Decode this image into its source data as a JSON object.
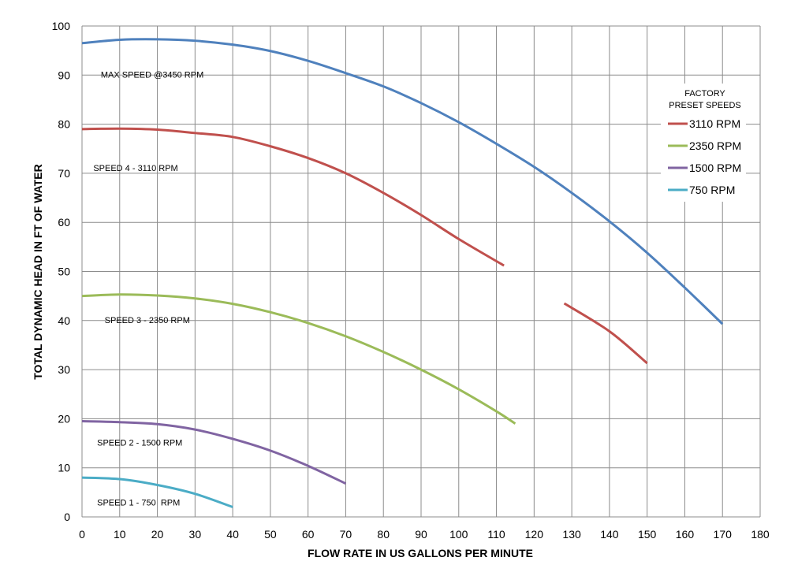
{
  "chart_data": {
    "type": "line",
    "title": "",
    "xlabel": "FLOW RATE IN US GALLONS PER MINUTE",
    "ylabel": "TOTAL DYNAMIC HEAD IN FT OF WATER",
    "xlim": [
      0,
      180
    ],
    "ylim": [
      0,
      100
    ],
    "xticks": [
      "0",
      "10",
      "20",
      "30",
      "40",
      "50",
      "60",
      "70",
      "80",
      "90",
      "100",
      "110",
      "120",
      "130",
      "140",
      "150",
      "160",
      "170",
      "180"
    ],
    "yticks": [
      "0",
      "10",
      "20",
      "30",
      "40",
      "50",
      "60",
      "70",
      "80",
      "90",
      "100"
    ],
    "grid": true,
    "legend": {
      "title_lines": [
        "FACTORY",
        "PRESET SPEEDS"
      ],
      "placement": "top-right",
      "entries": [
        {
          "label": "3110 RPM",
          "color": "#C0504D"
        },
        {
          "label": "2350 RPM",
          "color": "#9BBB59"
        },
        {
          "label": "1500 RPM",
          "color": "#8064A2"
        },
        {
          "label": "750 RPM",
          "color": "#4BACC6"
        }
      ]
    },
    "series": [
      {
        "name": "MAX SPEED @3450 RPM",
        "color": "#4F81BD",
        "segments": [
          {
            "x": [
              0,
              10,
              20,
              30,
              40,
              50,
              60,
              70,
              80,
              90,
              100,
              110,
              120,
              130,
              140,
              150,
              160,
              170
            ],
            "y": [
              96.5,
              97.2,
              97.3,
              97.0,
              96.2,
              94.9,
              92.9,
              90.4,
              87.7,
              84.3,
              80.4,
              76.0,
              71.3,
              66.0,
              60.2,
              53.8,
              46.7,
              39.3
            ]
          }
        ]
      },
      {
        "name": "SPEED 4 - 3110 RPM",
        "color": "#C0504D",
        "segments": [
          {
            "x": [
              0,
              10,
              20,
              30,
              40,
              50,
              60,
              70,
              80,
              90,
              100,
              112
            ],
            "y": [
              79.0,
              79.1,
              78.9,
              78.2,
              77.4,
              75.5,
              73.1,
              70.0,
              66.0,
              61.5,
              56.6,
              51.2
            ]
          },
          {
            "x": [
              128,
              140,
              150
            ],
            "y": [
              43.5,
              37.8,
              31.3
            ]
          }
        ]
      },
      {
        "name": "SPEED 3 - 2350 RPM",
        "color": "#9BBB59",
        "segments": [
          {
            "x": [
              0,
              10,
              20,
              30,
              40,
              50,
              60,
              70,
              80,
              90,
              100,
              110,
              115
            ],
            "y": [
              45.0,
              45.3,
              45.1,
              44.5,
              43.4,
              41.7,
              39.5,
              36.8,
              33.6,
              30.0,
              26.0,
              21.5,
              19.0
            ]
          }
        ]
      },
      {
        "name": "SPEED 2 - 1500 RPM",
        "color": "#8064A2",
        "segments": [
          {
            "x": [
              0,
              10,
              20,
              30,
              40,
              50,
              60,
              70
            ],
            "y": [
              19.5,
              19.3,
              18.9,
              17.8,
              15.9,
              13.5,
              10.4,
              6.8
            ]
          }
        ]
      },
      {
        "name": "SPEED 1 - 750  RPM",
        "color": "#4BACC6",
        "segments": [
          {
            "x": [
              0,
              10,
              20,
              30,
              40
            ],
            "y": [
              8.0,
              7.7,
              6.5,
              4.7,
              2.0
            ]
          }
        ]
      }
    ],
    "curve_labels": [
      {
        "text": "MAX SPEED @3450 RPM",
        "x": 5,
        "y": 89.5
      },
      {
        "text": "SPEED 4 - 3110 RPM",
        "x": 3,
        "y": 70.5
      },
      {
        "text": "SPEED 3 - 2350 RPM",
        "x": 6,
        "y": 39.5
      },
      {
        "text": "SPEED 2 - 1500 RPM",
        "x": 4,
        "y": 14.5
      },
      {
        "text": "SPEED 1 - 750  RPM",
        "x": 4,
        "y": 2.3
      }
    ]
  }
}
